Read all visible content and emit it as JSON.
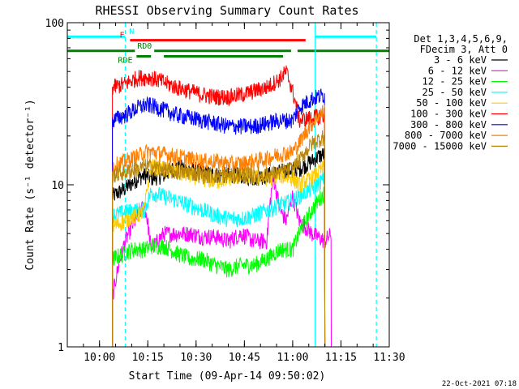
{
  "chart_data": {
    "type": "line",
    "title": "RHESSI Observing Summary Count Rates",
    "xlabel": "Start Time (09-Apr-14 09:50:02)",
    "ylabel": "Count Rate (s⁻¹ detector⁻¹)",
    "x_unit": "minutes after 09:50:02",
    "xlim": [
      0,
      100
    ],
    "ylim": [
      1,
      100
    ],
    "yscale": "log",
    "grid": false,
    "legend_position": "top-right",
    "x_ticks": [
      {
        "value": 10,
        "label": "10:00"
      },
      {
        "value": 25,
        "label": "10:15"
      },
      {
        "value": 40,
        "label": "10:30"
      },
      {
        "value": 55,
        "label": "10:45"
      },
      {
        "value": 70,
        "label": "11:00"
      },
      {
        "value": 85,
        "label": "11:15"
      },
      {
        "value": 100,
        "label": "11:30"
      }
    ],
    "y_ticks": [
      {
        "value": 1,
        "label": "1"
      },
      {
        "value": 10,
        "label": "10"
      },
      {
        "value": 100,
        "label": "100"
      }
    ],
    "legend_header": [
      "Det 1,3,4,5,6,9,",
      "FDecim 3, Att 0"
    ],
    "series": [
      {
        "name": "3 - 6 keV",
        "color": "#000000",
        "x": [
          14,
          18,
          22,
          24,
          26,
          30,
          34,
          38,
          42,
          46,
          50,
          54,
          58,
          62,
          66,
          70,
          72,
          76,
          78,
          80
        ],
        "y": [
          8.5,
          9.5,
          11,
          11.5,
          11,
          11.5,
          13,
          12.5,
          12,
          11.5,
          11.5,
          11.5,
          11,
          11.5,
          12,
          12.5,
          12.5,
          14,
          15,
          15.5
        ]
      },
      {
        "name": "6 - 12 keV",
        "color": "#ff00ff",
        "x": [
          14,
          16,
          18,
          20,
          22,
          24,
          26,
          30,
          34,
          38,
          42,
          46,
          50,
          54,
          58,
          62,
          64,
          66,
          68,
          70,
          72,
          76,
          80,
          82
        ],
        "y": [
          2,
          3.2,
          4.5,
          5.5,
          6.5,
          7.5,
          4,
          5,
          5,
          5,
          4.8,
          4.8,
          4.5,
          5,
          4.5,
          4.5,
          11,
          7,
          6,
          8.5,
          6,
          5,
          4.5,
          5
        ]
      },
      {
        "name": "12 - 25 keV",
        "color": "#00ff00",
        "x": [
          14,
          18,
          20,
          24,
          26,
          30,
          34,
          38,
          42,
          46,
          50,
          54,
          58,
          62,
          66,
          70,
          72,
          76,
          80
        ],
        "y": [
          3.5,
          3.8,
          4,
          4,
          4.2,
          4.2,
          3.8,
          3.5,
          3.5,
          3.2,
          3,
          3.2,
          3.2,
          3.5,
          4,
          4,
          5,
          7,
          9
        ]
      },
      {
        "name": "25 - 50 keV",
        "color": "#00ffff",
        "x": [
          14,
          18,
          22,
          24,
          26,
          30,
          34,
          38,
          42,
          46,
          50,
          54,
          58,
          62,
          66,
          70,
          72,
          76,
          80
        ],
        "y": [
          6.5,
          6.8,
          7,
          7,
          9,
          8.5,
          8,
          7.5,
          7,
          6.5,
          6.2,
          6.2,
          6.5,
          7,
          7.5,
          8,
          8.5,
          9.5,
          11
        ]
      },
      {
        "name": "50 - 100 keV",
        "color": "#ffcc00",
        "x": [
          14,
          18,
          22,
          24,
          26,
          30,
          34,
          38,
          42,
          46,
          50,
          54,
          58,
          62,
          66,
          70,
          72,
          76,
          80
        ],
        "y": [
          5.5,
          6,
          6.5,
          7,
          13,
          12.5,
          12,
          11.5,
          11,
          10.5,
          11,
          11.5,
          11,
          11,
          11.5,
          11,
          10,
          11,
          13
        ]
      },
      {
        "name": "100 - 300 keV",
        "color": "#ff0000",
        "x": [
          14,
          18,
          20,
          22,
          24,
          26,
          30,
          34,
          38,
          42,
          46,
          50,
          54,
          58,
          62,
          66,
          68,
          72,
          76,
          80
        ],
        "y": [
          40,
          42,
          44,
          46,
          46,
          46,
          43,
          40,
          38,
          36,
          35,
          35,
          36,
          38,
          40,
          45,
          50,
          25,
          26,
          27
        ]
      },
      {
        "name": "300 - 800 keV",
        "color": "#0000ff",
        "x": [
          14,
          18,
          22,
          24,
          26,
          30,
          34,
          38,
          42,
          46,
          50,
          54,
          58,
          62,
          66,
          70,
          72,
          76,
          80
        ],
        "y": [
          25,
          27,
          30,
          31,
          31,
          29,
          27,
          26,
          25,
          24,
          23,
          23,
          23,
          24,
          25,
          25,
          30,
          34,
          36
        ]
      },
      {
        "name": "800 - 7000 keV",
        "color": "#ff7f00",
        "x": [
          14,
          18,
          22,
          24,
          26,
          30,
          34,
          38,
          42,
          46,
          50,
          54,
          58,
          62,
          66,
          70,
          72,
          76,
          80
        ],
        "y": [
          13,
          14,
          15,
          16,
          16,
          15.5,
          15,
          14.5,
          14,
          14,
          13.5,
          13.5,
          14,
          14.5,
          15.5,
          16,
          18,
          24,
          29
        ]
      },
      {
        "name": "7000 - 15000 keV",
        "color": "#b8860b",
        "x": [
          14,
          18,
          22,
          24,
          26,
          30,
          34,
          38,
          42,
          46,
          50,
          54,
          58,
          62,
          66,
          70,
          72,
          76,
          80
        ],
        "y": [
          11.5,
          12,
          12.5,
          13,
          13,
          12.5,
          12,
          12,
          11.5,
          11.5,
          11.5,
          11.5,
          11.5,
          11.5,
          12,
          12.5,
          14,
          18,
          20
        ]
      }
    ],
    "flag_bars": [
      {
        "name": "N",
        "color": "#00ffff",
        "segments": [
          [
            0,
            18
          ],
          [
            77,
            96
          ]
        ],
        "label_x": 20,
        "y": 82
      },
      {
        "name": "F",
        "color": "#ff0000",
        "segments": [
          [
            19.5,
            74
          ]
        ],
        "label_x": 17,
        "y": 78
      },
      {
        "name": "RD0",
        "color": "#008000",
        "segments": [
          [
            0,
            21
          ],
          [
            27,
            69.5
          ],
          [
            71.5,
            100
          ]
        ],
        "label_x": 24,
        "y": 67
      },
      {
        "name": "RDE",
        "color": "#008000",
        "segments": [
          [
            21.5,
            26
          ],
          [
            30,
            67
          ]
        ],
        "label_x": 18,
        "y": 62
      }
    ],
    "vertical_markers": [
      {
        "x": 18,
        "color": "#00ffff",
        "style": "dashed"
      },
      {
        "x": 77,
        "color": "#00ffff",
        "style": "solid"
      },
      {
        "x": 96,
        "color": "#00ffff",
        "style": "dashed"
      }
    ],
    "data_window": [
      14,
      82
    ]
  },
  "footer": {
    "timestamp": "22-Oct-2021 07:18"
  }
}
